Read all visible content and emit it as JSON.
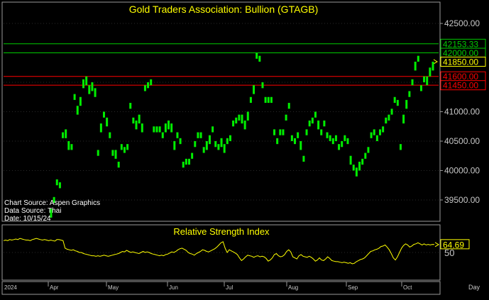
{
  "chart_data": [
    {
      "type": "bar",
      "subtype": "price-bars",
      "title": "Gold Traders Association: Bullion (GTAGB)",
      "ylim": [
        39150,
        42850
      ],
      "y_ticks": [
        "42500.00",
        "42000.00",
        "41500.00",
        "41000.00",
        "40500.00",
        "40000.00",
        "39500.00"
      ],
      "y_tick_values": [
        42500,
        42000,
        41500,
        41000,
        40500,
        40000,
        39500
      ],
      "price_bars": [
        [
          39200,
          39350
        ],
        [
          39450,
          39550
        ],
        [
          39750,
          39850
        ],
        [
          39700,
          39800
        ],
        [
          40550,
          40650
        ],
        [
          40550,
          40700
        ],
        [
          40350,
          40500
        ],
        [
          40350,
          40450
        ],
        [
          41200,
          41300
        ],
        [
          40950,
          41100
        ],
        [
          41100,
          41250
        ],
        [
          41400,
          41550
        ],
        [
          41450,
          41600
        ],
        [
          41300,
          41450
        ],
        [
          41350,
          41500
        ],
        [
          41250,
          41400
        ],
        [
          40250,
          40350
        ],
        [
          40650,
          40800
        ],
        [
          40900,
          41000
        ],
        [
          40750,
          40900
        ],
        [
          40550,
          40650
        ],
        [
          40250,
          40350
        ],
        [
          40200,
          40350
        ],
        [
          40050,
          40150
        ],
        [
          40350,
          40450
        ],
        [
          40300,
          40400
        ],
        [
          40350,
          40450
        ],
        [
          41050,
          41150
        ],
        [
          40800,
          40900
        ],
        [
          40700,
          40850
        ],
        [
          40800,
          40950
        ],
        [
          40650,
          40800
        ],
        [
          41350,
          41450
        ],
        [
          41400,
          41500
        ],
        [
          41450,
          41550
        ],
        [
          40650,
          40750
        ],
        [
          40650,
          40750
        ],
        [
          40650,
          40750
        ],
        [
          40550,
          40650
        ],
        [
          40650,
          40800
        ],
        [
          40700,
          40850
        ],
        [
          40650,
          40800
        ],
        [
          40350,
          40500
        ],
        [
          40550,
          40650
        ],
        [
          40450,
          40550
        ],
        [
          40050,
          40150
        ],
        [
          40100,
          40200
        ],
        [
          40100,
          40200
        ],
        [
          40200,
          40300
        ],
        [
          40400,
          40500
        ],
        [
          40550,
          40650
        ],
        [
          40550,
          40650
        ],
        [
          40300,
          40400
        ],
        [
          40350,
          40500
        ],
        [
          40450,
          40600
        ],
        [
          40650,
          40750
        ],
        [
          40400,
          40500
        ],
        [
          40350,
          40450
        ],
        [
          40400,
          40550
        ],
        [
          40300,
          40450
        ],
        [
          40450,
          40550
        ],
        [
          40500,
          40600
        ],
        [
          40750,
          40850
        ],
        [
          40800,
          40900
        ],
        [
          40850,
          40950
        ],
        [
          40800,
          40950
        ],
        [
          40700,
          40850
        ],
        [
          40850,
          41000
        ],
        [
          41150,
          41250
        ],
        [
          41300,
          41450
        ],
        [
          41900,
          42000
        ],
        [
          41850,
          41950
        ],
        [
          41400,
          41500
        ],
        [
          41150,
          41250
        ],
        [
          41150,
          41250
        ],
        [
          41150,
          41250
        ],
        [
          40600,
          40700
        ],
        [
          40450,
          40550
        ],
        [
          40600,
          40700
        ],
        [
          40600,
          40700
        ],
        [
          40850,
          40950
        ],
        [
          41050,
          41150
        ],
        [
          40500,
          40600
        ],
        [
          40450,
          40550
        ],
        [
          40550,
          40650
        ],
        [
          40350,
          40500
        ],
        [
          40150,
          40250
        ],
        [
          40600,
          40700
        ],
        [
          40750,
          40850
        ],
        [
          40800,
          40900
        ],
        [
          40900,
          41000
        ],
        [
          40700,
          40850
        ],
        [
          40600,
          40700
        ],
        [
          40750,
          40850
        ],
        [
          40550,
          40650
        ],
        [
          40500,
          40600
        ],
        [
          40450,
          40550
        ],
        [
          40500,
          40600
        ],
        [
          40350,
          40450
        ],
        [
          40400,
          40500
        ],
        [
          40500,
          40600
        ],
        [
          40450,
          40550
        ],
        [
          40100,
          40250
        ],
        [
          40000,
          40100
        ],
        [
          39900,
          40050
        ],
        [
          40000,
          40150
        ],
        [
          40100,
          40200
        ],
        [
          40200,
          40300
        ],
        [
          40300,
          40400
        ],
        [
          40550,
          40650
        ],
        [
          40600,
          40700
        ],
        [
          40500,
          40600
        ],
        [
          40600,
          40700
        ],
        [
          40650,
          40750
        ],
        [
          40800,
          40900
        ],
        [
          40850,
          40950
        ],
        [
          40950,
          41050
        ],
        [
          41150,
          41250
        ],
        [
          41100,
          41200
        ],
        [
          40350,
          40450
        ],
        [
          40800,
          40950
        ],
        [
          41050,
          41200
        ],
        [
          41250,
          41350
        ],
        [
          41450,
          41550
        ],
        [
          41700,
          41850
        ],
        [
          41850,
          41950
        ],
        [
          41350,
          41450
        ],
        [
          41500,
          41600
        ],
        [
          41450,
          41600
        ],
        [
          41600,
          41750
        ],
        [
          41700,
          41850
        ]
      ],
      "horizontal_lines": [
        {
          "value": 42153.33,
          "label": "42153.33",
          "color": "#00cc00"
        },
        {
          "value": 42000,
          "label": "42000.00",
          "color": "#00cc00"
        },
        {
          "value": 41850,
          "label": "41850.00",
          "color": "#ffff00",
          "current": true
        },
        {
          "value": 41600,
          "label": "41600.00",
          "color": "#ff0000"
        },
        {
          "value": 41450,
          "label": "41450.00",
          "color": "#ff0000"
        }
      ],
      "annotations": [
        "Chart Source: Aspen Graphics",
        "Data Source: Thai",
        "Date: 10/15/24"
      ]
    },
    {
      "type": "line",
      "title": "Relative Strength Index",
      "ylim": [
        0,
        100
      ],
      "y_ticks": [
        "50"
      ],
      "y_tick_values": [
        50
      ],
      "current_label": "64.69",
      "current_value": 64.69,
      "rsi": [
        72,
        73,
        72,
        74,
        73,
        74,
        75,
        74,
        76,
        75,
        74,
        73,
        73,
        72,
        74,
        75,
        76,
        75,
        74,
        73,
        74,
        73,
        72,
        73,
        72,
        71,
        74,
        74,
        73,
        72,
        58,
        56,
        55,
        54,
        55,
        53,
        52,
        50,
        50,
        48,
        47,
        46,
        45,
        44,
        44,
        43,
        44,
        43,
        44,
        45,
        44,
        43,
        44,
        45,
        46,
        47,
        48,
        50,
        52,
        51,
        54,
        52,
        50,
        51,
        50,
        49,
        48,
        50,
        52,
        50,
        51,
        50,
        48,
        47,
        46,
        45,
        44,
        45,
        44,
        46,
        47,
        49,
        51,
        50,
        52,
        55,
        57,
        58,
        56,
        54,
        50,
        48,
        47,
        45,
        48,
        50,
        52,
        55,
        54,
        52,
        51,
        53,
        55,
        57,
        60,
        64,
        68,
        70,
        58,
        50,
        55,
        53,
        51,
        49,
        46,
        40,
        35,
        38,
        42,
        45,
        44,
        43,
        41,
        43,
        44,
        42,
        43,
        42,
        39,
        34,
        36,
        40,
        46,
        48,
        44,
        42,
        43,
        46,
        52,
        55,
        51,
        42,
        40,
        38,
        44,
        46,
        43,
        42,
        41,
        43,
        41,
        38,
        34,
        36,
        40,
        36,
        35,
        38,
        42,
        39,
        35,
        34,
        33,
        33,
        32,
        31,
        32,
        31,
        30,
        31,
        29,
        30,
        33,
        35,
        37,
        38,
        40,
        44,
        48,
        52,
        53,
        55,
        56,
        58,
        61,
        62,
        64,
        60,
        55,
        48,
        40,
        36,
        42,
        50,
        58,
        63,
        66,
        64,
        60,
        62,
        65,
        66,
        68,
        66,
        64,
        66,
        64,
        65,
        64,
        65,
        64.69
      ],
      "x_labels": [
        "2024",
        "Apr",
        "May",
        "Jun",
        "Jul",
        "Aug",
        "Sep",
        "Oct"
      ],
      "x_unit": "Day"
    }
  ]
}
